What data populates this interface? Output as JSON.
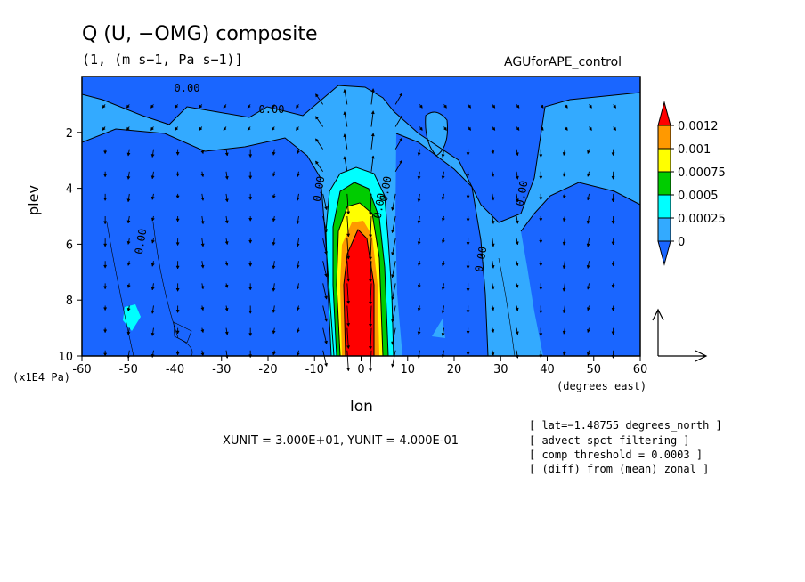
{
  "chart_data": {
    "type": "contour",
    "title": "Q (U, −OMG) composite",
    "subtitle": "(1, (m s−1, Pa s−1)]",
    "dataset": "AGUforAPE_control",
    "xlabel": "lon",
    "x_units": "(degrees_east)",
    "ylabel": "plev",
    "y_units": "(x1E4 Pa)",
    "xlim": [
      -60,
      60
    ],
    "ylim": [
      10,
      0
    ],
    "x_ticks": [
      "-60",
      "-50",
      "-40",
      "-30",
      "-20",
      "-10",
      "0",
      "10",
      "20",
      "30",
      "40",
      "50",
      "60"
    ],
    "y_ticks": [
      "2",
      "4",
      "6",
      "8",
      "10"
    ],
    "colorbar": {
      "levels": [
        "0.0012",
        "0.001",
        "0.00075",
        "0.0005",
        "0.00025",
        "0"
      ],
      "colors": [
        "#ff0000",
        "#ff9900",
        "#ffff00",
        "#00cc00",
        "#00ffff",
        "#33aaff",
        "#1a66ff"
      ]
    },
    "contour_labels": [
      "0.00",
      "0.00",
      "0.00",
      "0.00",
      "0.00",
      "0.00",
      "0.00",
      "0.00"
    ],
    "vector_unit_text": "XUNIT = 3.000E+01, YUNIT = 4.000E-01",
    "notes": [
      "[ lat=−1.48755 degrees_north ]",
      "[ advect spct filtering ]",
      "[ comp threshold = 0.0003 ]",
      "[ (diff) from (mean) zonal ]"
    ]
  }
}
